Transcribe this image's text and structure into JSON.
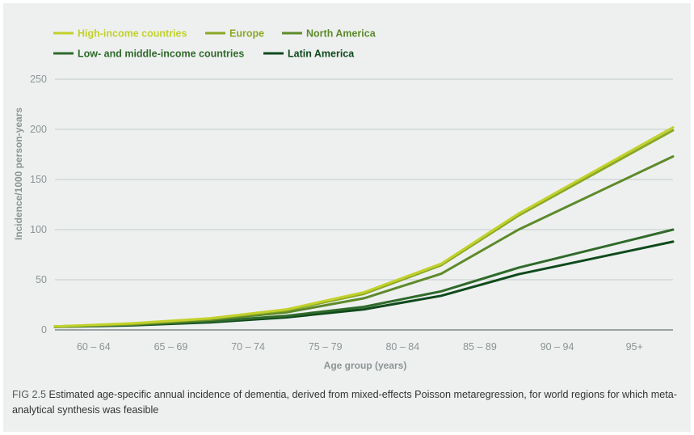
{
  "chart_data": {
    "type": "line",
    "title": "",
    "xlabel": "Age group  (years)",
    "ylabel": "Incidence/1000 person-years",
    "ylim": [
      0,
      250
    ],
    "yticks": [
      0,
      50,
      100,
      150,
      200,
      250
    ],
    "grid": true,
    "legend_position": "top-left",
    "categories": [
      "60 – 64",
      "65 – 69",
      "70 – 74",
      "75 – 79",
      "80 – 84",
      "85 – 89",
      "90 – 94",
      "95+"
    ],
    "series": [
      {
        "name": "High-income countries",
        "color": "#c2d12b",
        "values": [
          3.5,
          6.5,
          11.5,
          20.5,
          37.5,
          66,
          116,
          202
        ]
      },
      {
        "name": "Europe",
        "color": "#8aa826",
        "values": [
          3.5,
          6,
          11,
          19.5,
          36,
          64.5,
          114,
          199
        ]
      },
      {
        "name": "North America",
        "color": "#5e8a2a",
        "values": [
          3,
          5.5,
          10,
          17.5,
          31.5,
          56,
          100,
          173
        ]
      },
      {
        "name": "Low- and middle-income countries",
        "color": "#2f6a2a",
        "values": [
          3.5,
          5,
          8.5,
          14,
          23,
          38.5,
          62,
          100
        ]
      },
      {
        "name": "Latin America",
        "color": "#0f4a1c",
        "values": [
          3,
          4.5,
          7.5,
          12.5,
          20.5,
          34,
          55.5,
          88
        ]
      }
    ]
  },
  "caption": {
    "label": "FIG 2.5",
    "text": "Estimated age-specific annual incidence of dementia, derived from mixed-effects Poisson metaregression, for world regions for which meta-analytical synthesis was feasible"
  }
}
